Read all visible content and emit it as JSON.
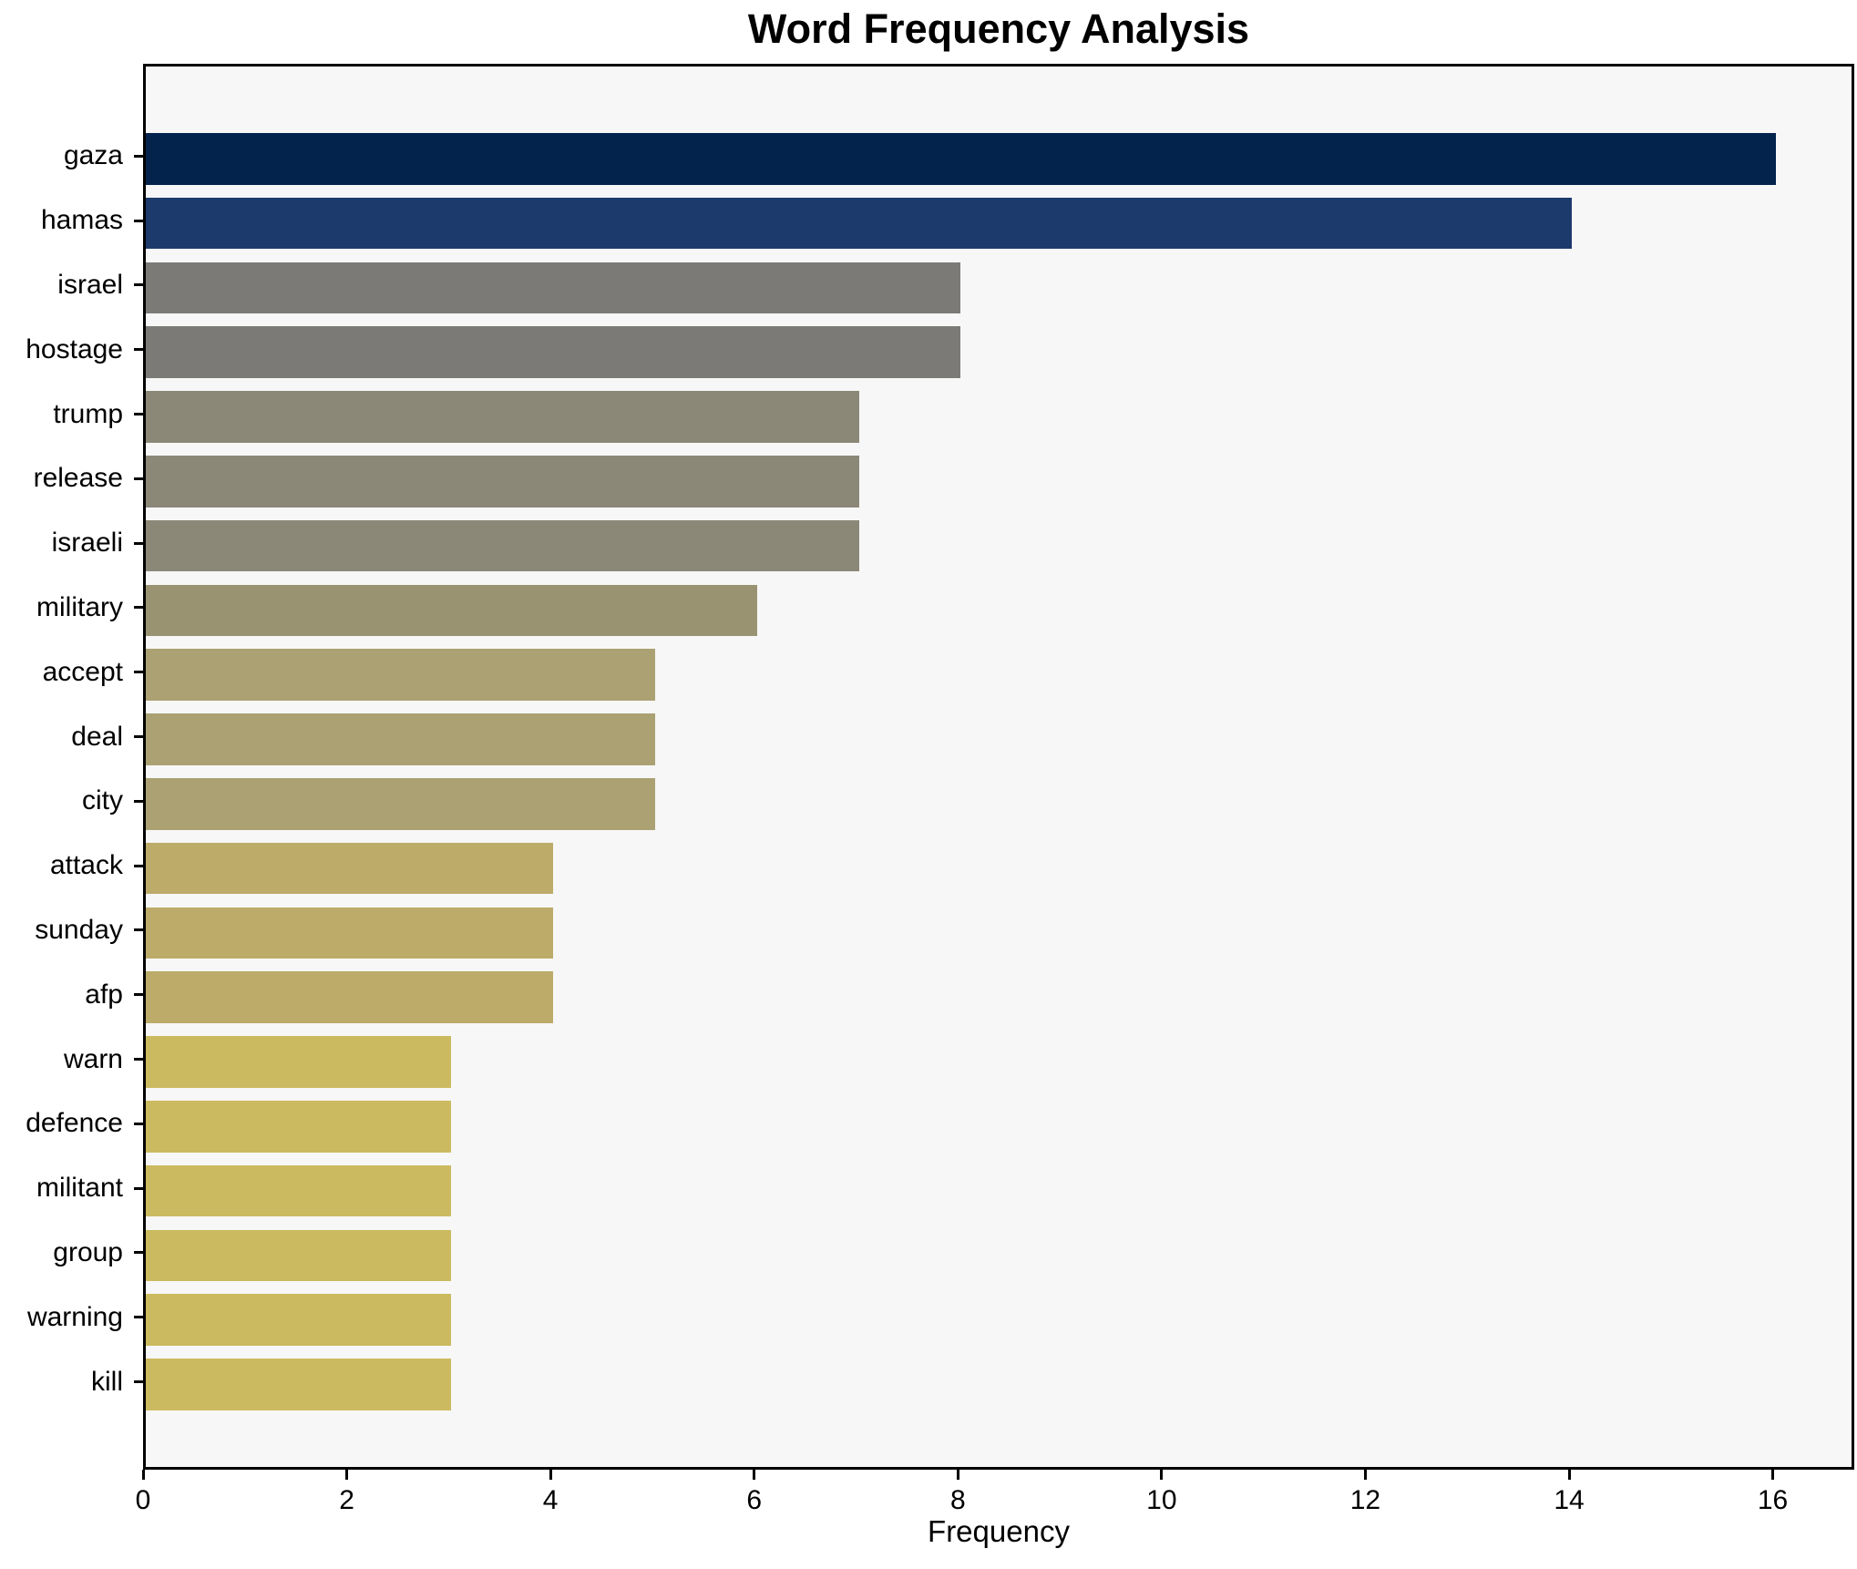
{
  "chart_data": {
    "type": "bar",
    "orientation": "horizontal",
    "title": "Word Frequency Analysis",
    "xlabel": "Frequency",
    "ylabel": "",
    "categories": [
      "gaza",
      "hamas",
      "israel",
      "hostage",
      "trump",
      "release",
      "israeli",
      "military",
      "accept",
      "deal",
      "city",
      "attack",
      "sunday",
      "afp",
      "warn",
      "defence",
      "militant",
      "group",
      "warning",
      "kill"
    ],
    "values": [
      16,
      14,
      8,
      8,
      7,
      7,
      7,
      6,
      5,
      5,
      5,
      4,
      4,
      4,
      3,
      3,
      3,
      3,
      3,
      3
    ],
    "bar_colors": [
      "#03234d",
      "#1d3a6d",
      "#7b7a77",
      "#7b7a77",
      "#8b8878",
      "#8b8878",
      "#8b8878",
      "#9a9372",
      "#aba172",
      "#aba172",
      "#aba172",
      "#bcab69",
      "#bcab69",
      "#bcab69",
      "#ccba60",
      "#ccba60",
      "#ccba60",
      "#ccba60",
      "#ccba60",
      "#ccba60"
    ],
    "xticks": [
      0,
      2,
      4,
      6,
      8,
      10,
      12,
      14,
      16
    ],
    "xlim": [
      0,
      16.8
    ],
    "grid": false,
    "legend_position": "none",
    "plot_background": "#f7f7f7",
    "figure_background": "#ffffff",
    "spine_color": "#000000",
    "bar_height_fraction": 0.8
  }
}
